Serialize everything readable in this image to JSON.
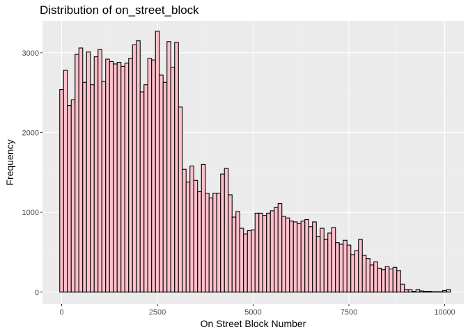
{
  "chart_data": {
    "type": "bar",
    "title": "Distribution of on_street_block",
    "xlabel": "On Street Block Number",
    "ylabel": "Frequency",
    "xlim": [
      -500,
      10500
    ],
    "ylim": [
      -150,
      3400
    ],
    "x_ticks": [
      0,
      2500,
      5000,
      7500,
      10000
    ],
    "x_tick_labels": [
      "0",
      "2500",
      "5000",
      "7500",
      "10000"
    ],
    "y_ticks": [
      0,
      1000,
      2000,
      3000
    ],
    "y_tick_labels": [
      "0",
      "1000",
      "2000",
      "3000"
    ],
    "grid": true,
    "bin_start": -50,
    "bin_width": 100,
    "values": [
      2540,
      2780,
      2340,
      2410,
      2980,
      3060,
      2630,
      3010,
      2600,
      2950,
      3040,
      2640,
      2920,
      2890,
      2860,
      2880,
      2830,
      2870,
      2930,
      3100,
      3150,
      2510,
      2600,
      2930,
      2910,
      3270,
      2720,
      2630,
      3140,
      2820,
      3130,
      2320,
      1540,
      1380,
      1580,
      1400,
      1260,
      1600,
      1240,
      1180,
      1240,
      1240,
      1480,
      1550,
      1220,
      940,
      1010,
      800,
      730,
      770,
      780,
      990,
      990,
      960,
      990,
      1020,
      1060,
      1110,
      950,
      930,
      890,
      880,
      860,
      890,
      910,
      820,
      880,
      700,
      800,
      660,
      740,
      810,
      620,
      600,
      650,
      590,
      470,
      520,
      660,
      460,
      420,
      340,
      380,
      300,
      280,
      320,
      290,
      310,
      270,
      100,
      30,
      30,
      10,
      30,
      15,
      10,
      10,
      5,
      5,
      5,
      20,
      30
    ],
    "colors": {
      "bar_fill": "#ffc0cb",
      "bar_stroke": "#000000",
      "panel": "#ebebeb",
      "grid_major": "#ffffff",
      "grid_minor": "#f5f5f5"
    }
  }
}
